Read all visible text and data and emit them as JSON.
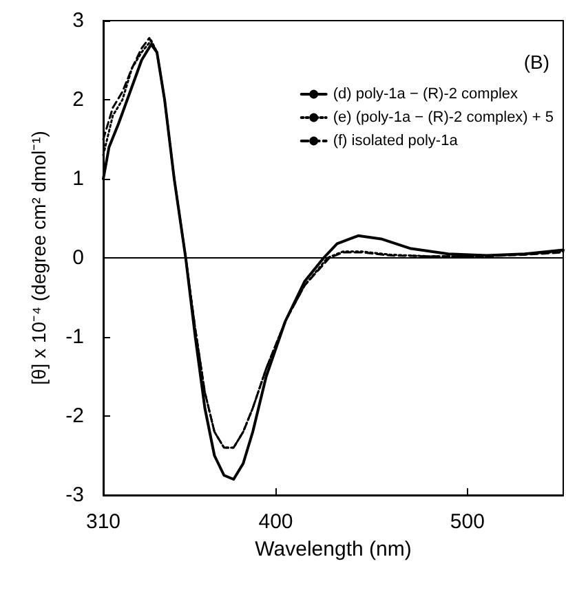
{
  "chart_data": {
    "type": "line",
    "xlabel": "Wavelength (nm)",
    "ylabel": "[θ] x 10⁻⁴ (degree cm² dmol⁻¹)",
    "annotations": [
      "(B)"
    ],
    "xlim": [
      310,
      550
    ],
    "xticks": [
      310,
      400,
      500
    ],
    "ylim": [
      -3,
      3
    ],
    "yticks": [
      -3,
      -2,
      -1,
      0,
      1,
      2,
      3
    ],
    "grid": false,
    "legend": "top right",
    "marker": "none",
    "ref_lines": [
      {
        "axis": "y",
        "value": 0,
        "color": "#000000",
        "line_style": "solid"
      }
    ],
    "series": [
      {
        "name": "(d) poly-1a − (R)-2 complex",
        "color": "#000000",
        "line_style": "solid",
        "x": [
          310,
          313,
          318,
          324,
          330,
          335,
          338,
          342,
          347,
          353,
          358,
          363,
          368,
          373,
          378,
          383,
          388,
          395,
          405,
          415,
          425,
          432,
          443,
          455,
          470,
          490,
          510,
          530,
          550
        ],
        "values": [
          1.0,
          1.4,
          1.7,
          2.1,
          2.5,
          2.7,
          2.6,
          2.0,
          1.0,
          0,
          -1.0,
          -1.9,
          -2.5,
          -2.75,
          -2.8,
          -2.6,
          -2.2,
          -1.5,
          -0.8,
          -0.3,
          0,
          0.18,
          0.28,
          0.24,
          0.12,
          0.05,
          0.03,
          0.05,
          0.1
        ]
      },
      {
        "name": "(e) (poly-1a − (R)-2 complex) + 5",
        "color": "#000000",
        "line_style": "dotted",
        "x": [
          310,
          315,
          320,
          325,
          330,
          335,
          338,
          342,
          347,
          353,
          358,
          363,
          368,
          373,
          378,
          383,
          388,
          395,
          405,
          415,
          427,
          435,
          445,
          460,
          480,
          510,
          530,
          550
        ],
        "values": [
          1.3,
          1.8,
          2.0,
          2.4,
          2.6,
          2.75,
          2.6,
          2.0,
          1.0,
          0,
          -0.9,
          -1.7,
          -2.2,
          -2.4,
          -2.4,
          -2.2,
          -1.9,
          -1.4,
          -0.8,
          -0.35,
          0,
          0.08,
          0.08,
          0.04,
          0.02,
          0.02,
          0.05,
          0.08
        ]
      },
      {
        "name": "(f) isolated poly-1a",
        "color": "#000000",
        "line_style": "dashed",
        "x": [
          310,
          315,
          320,
          325,
          330,
          334,
          338,
          342,
          347,
          353,
          358,
          363,
          368,
          373,
          378,
          383,
          388,
          395,
          405,
          415,
          428,
          435,
          445,
          460,
          480,
          510,
          530,
          550
        ],
        "values": [
          1.5,
          1.9,
          2.1,
          2.4,
          2.65,
          2.78,
          2.6,
          2.0,
          1.0,
          0,
          -0.9,
          -1.7,
          -2.2,
          -2.4,
          -2.4,
          -2.2,
          -1.9,
          -1.4,
          -0.8,
          -0.35,
          0,
          0.07,
          0.07,
          0.03,
          0.02,
          0.02,
          0.04,
          0.07
        ]
      }
    ]
  }
}
